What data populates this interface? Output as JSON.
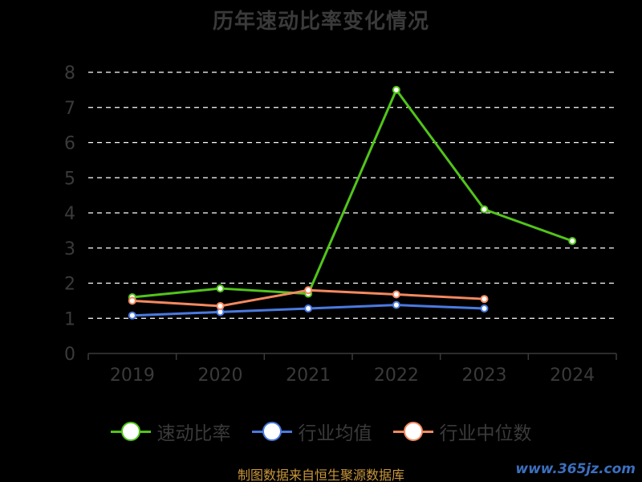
{
  "chart_data": {
    "type": "line",
    "title": "历年速动比率变化情况",
    "categories": [
      "2019",
      "2020",
      "2021",
      "2022",
      "2023",
      "2024"
    ],
    "ylim": [
      0,
      8
    ],
    "yticks": [
      0,
      1,
      2,
      3,
      4,
      5,
      6,
      7,
      8
    ],
    "grid": true,
    "legend_position": "bottom",
    "series": [
      {
        "name": "速动比率",
        "color": "#52c41a",
        "values": [
          1.6,
          1.85,
          1.7,
          7.5,
          4.1,
          3.2
        ]
      },
      {
        "name": "行业均值",
        "color": "#4a7ae0",
        "values": [
          1.08,
          1.18,
          1.28,
          1.38,
          1.28,
          null
        ]
      },
      {
        "name": "行业中位数",
        "color": "#f4895f",
        "values": [
          1.5,
          1.35,
          1.8,
          1.68,
          1.55,
          null
        ]
      }
    ]
  },
  "footer": "制图数据来自恒生聚源数据库",
  "watermark": "www.365jz.com"
}
